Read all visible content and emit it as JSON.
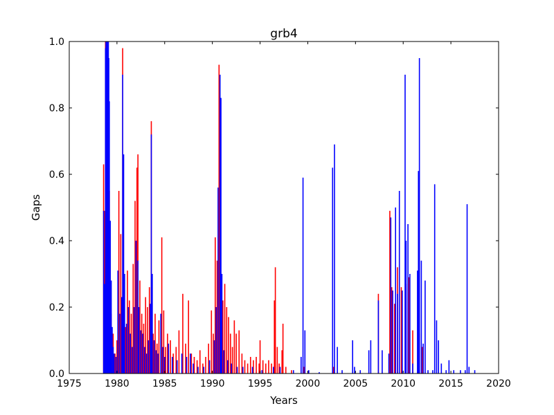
{
  "chart_data": {
    "type": "bar",
    "title": "grb4",
    "xlabel": "Years",
    "ylabel": "Gaps",
    "xlim": [
      1975,
      2020
    ],
    "ylim": [
      0,
      1.0
    ],
    "xticks": [
      1975,
      1980,
      1985,
      1990,
      1995,
      2000,
      2005,
      2010,
      2015,
      2020
    ],
    "xtick_labels": [
      "1975",
      "1980",
      "1985",
      "1990",
      "1995",
      "2000",
      "2005",
      "2010",
      "2015",
      "2020"
    ],
    "yticks": [
      0,
      0.2,
      0.4,
      0.6,
      0.8,
      1.0
    ],
    "ytick_labels": [
      "0.0",
      "0.2",
      "0.4",
      "0.6",
      "0.8",
      "1.0"
    ],
    "grid": false,
    "legend": "none",
    "series": [
      {
        "color": "#ff0000",
        "points": [
          [
            1978.6,
            0.63
          ],
          [
            1978.7,
            0.49
          ],
          [
            1978.8,
            1.0
          ],
          [
            1978.9,
            0.28
          ],
          [
            1979.0,
            0.35
          ],
          [
            1979.2,
            0.55
          ],
          [
            1979.4,
            0.18
          ],
          [
            1979.6,
            0.12
          ],
          [
            1979.8,
            0.06
          ],
          [
            1980.0,
            0.1
          ],
          [
            1980.2,
            0.55
          ],
          [
            1980.4,
            0.42
          ],
          [
            1980.6,
            0.98
          ],
          [
            1980.7,
            0.25
          ],
          [
            1980.9,
            0.14
          ],
          [
            1981.1,
            0.31
          ],
          [
            1981.3,
            0.22
          ],
          [
            1981.5,
            0.18
          ],
          [
            1981.7,
            0.33
          ],
          [
            1981.9,
            0.52
          ],
          [
            1982.1,
            0.62
          ],
          [
            1982.2,
            0.66
          ],
          [
            1982.4,
            0.28
          ],
          [
            1982.6,
            0.18
          ],
          [
            1982.8,
            0.15
          ],
          [
            1983.0,
            0.23
          ],
          [
            1983.2,
            0.2
          ],
          [
            1983.4,
            0.26
          ],
          [
            1983.6,
            0.76
          ],
          [
            1983.8,
            0.12
          ],
          [
            1984.0,
            0.18
          ],
          [
            1984.2,
            0.09
          ],
          [
            1984.4,
            0.16
          ],
          [
            1984.7,
            0.41
          ],
          [
            1984.9,
            0.19
          ],
          [
            1985.1,
            0.08
          ],
          [
            1985.3,
            0.12
          ],
          [
            1985.6,
            0.1
          ],
          [
            1985.9,
            0.06
          ],
          [
            1986.2,
            0.08
          ],
          [
            1986.5,
            0.13
          ],
          [
            1986.9,
            0.24
          ],
          [
            1987.2,
            0.09
          ],
          [
            1987.5,
            0.22
          ],
          [
            1987.8,
            0.06
          ],
          [
            1988.1,
            0.05
          ],
          [
            1988.4,
            0.04
          ],
          [
            1988.7,
            0.07
          ],
          [
            1989.0,
            0.03
          ],
          [
            1989.3,
            0.05
          ],
          [
            1989.6,
            0.09
          ],
          [
            1989.9,
            0.19
          ],
          [
            1990.1,
            0.12
          ],
          [
            1990.3,
            0.41
          ],
          [
            1990.5,
            0.34
          ],
          [
            1990.7,
            0.93
          ],
          [
            1990.9,
            0.16
          ],
          [
            1991.1,
            0.22
          ],
          [
            1991.3,
            0.27
          ],
          [
            1991.5,
            0.2
          ],
          [
            1991.7,
            0.17
          ],
          [
            1991.9,
            0.12
          ],
          [
            1992.1,
            0.08
          ],
          [
            1992.3,
            0.16
          ],
          [
            1992.5,
            0.12
          ],
          [
            1992.8,
            0.13
          ],
          [
            1993.1,
            0.06
          ],
          [
            1993.4,
            0.04
          ],
          [
            1993.7,
            0.03
          ],
          [
            1994.0,
            0.05
          ],
          [
            1994.3,
            0.04
          ],
          [
            1994.6,
            0.05
          ],
          [
            1994.9,
            0.03
          ],
          [
            1995.0,
            0.1
          ],
          [
            1995.3,
            0.04
          ],
          [
            1995.6,
            0.03
          ],
          [
            1995.9,
            0.04
          ],
          [
            1996.2,
            0.03
          ],
          [
            1996.5,
            0.22
          ],
          [
            1996.6,
            0.32
          ],
          [
            1996.8,
            0.08
          ],
          [
            1997.0,
            0.03
          ],
          [
            1997.3,
            0.07
          ],
          [
            1997.4,
            0.15
          ],
          [
            1997.7,
            0.02
          ],
          [
            1998.3,
            0.01
          ],
          [
            1999.6,
            0.02
          ],
          [
            2002.7,
            0.02
          ],
          [
            2007.4,
            0.24
          ],
          [
            2008.6,
            0.49
          ],
          [
            2008.8,
            0.26
          ],
          [
            2009.1,
            0.21
          ],
          [
            2009.4,
            0.32
          ],
          [
            2009.8,
            0.26
          ],
          [
            2010.3,
            0.27
          ],
          [
            2010.6,
            0.29
          ],
          [
            2011.0,
            0.13
          ],
          [
            2011.7,
            0.12
          ],
          [
            2012.0,
            0.08
          ]
        ]
      },
      {
        "color": "#0000ff",
        "points": [
          [
            1978.6,
            0.49
          ],
          [
            1978.7,
            0.27
          ],
          [
            1978.8,
            0.98
          ],
          [
            1978.85,
            1.0
          ],
          [
            1978.9,
            1.0
          ],
          [
            1978.95,
            1.0
          ],
          [
            1979.0,
            1.0
          ],
          [
            1979.05,
            1.0
          ],
          [
            1979.1,
            1.0
          ],
          [
            1979.15,
            0.95
          ],
          [
            1979.2,
            0.82
          ],
          [
            1979.3,
            0.46
          ],
          [
            1979.4,
            0.28
          ],
          [
            1979.5,
            0.14
          ],
          [
            1979.6,
            0.08
          ],
          [
            1979.7,
            0.06
          ],
          [
            1979.9,
            0.05
          ],
          [
            1980.1,
            0.31
          ],
          [
            1980.3,
            0.18
          ],
          [
            1980.5,
            0.23
          ],
          [
            1980.6,
            0.9
          ],
          [
            1980.7,
            0.66
          ],
          [
            1980.8,
            0.3
          ],
          [
            1981.0,
            0.15
          ],
          [
            1981.2,
            0.2
          ],
          [
            1981.4,
            0.12
          ],
          [
            1981.6,
            0.08
          ],
          [
            1981.8,
            0.2
          ],
          [
            1982.0,
            0.4
          ],
          [
            1982.2,
            0.34
          ],
          [
            1982.3,
            0.2
          ],
          [
            1982.5,
            0.13
          ],
          [
            1982.7,
            0.12
          ],
          [
            1982.9,
            0.08
          ],
          [
            1983.1,
            0.06
          ],
          [
            1983.3,
            0.1
          ],
          [
            1983.5,
            0.21
          ],
          [
            1983.6,
            0.72
          ],
          [
            1983.7,
            0.3
          ],
          [
            1983.9,
            0.1
          ],
          [
            1984.1,
            0.07
          ],
          [
            1984.3,
            0.06
          ],
          [
            1984.6,
            0.18
          ],
          [
            1984.8,
            0.08
          ],
          [
            1985.0,
            0.05
          ],
          [
            1985.4,
            0.09
          ],
          [
            1985.8,
            0.05
          ],
          [
            1986.3,
            0.04
          ],
          [
            1986.8,
            0.06
          ],
          [
            1987.3,
            0.05
          ],
          [
            1987.7,
            0.06
          ],
          [
            1988.0,
            0.03
          ],
          [
            1988.5,
            0.02
          ],
          [
            1989.1,
            0.02
          ],
          [
            1989.7,
            0.04
          ],
          [
            1990.2,
            0.1
          ],
          [
            1990.4,
            0.2
          ],
          [
            1990.6,
            0.56
          ],
          [
            1990.8,
            0.9
          ],
          [
            1990.9,
            0.83
          ],
          [
            1991.0,
            0.3
          ],
          [
            1991.2,
            0.07
          ],
          [
            1991.6,
            0.04
          ],
          [
            1992.0,
            0.03
          ],
          [
            1992.6,
            0.02
          ],
          [
            1993.2,
            0.02
          ],
          [
            1994.2,
            0.02
          ],
          [
            1995.2,
            0.01
          ],
          [
            1996.4,
            0.02
          ],
          [
            1997.1,
            0.02
          ],
          [
            1998.5,
            0.01
          ],
          [
            1999.3,
            0.05
          ],
          [
            1999.5,
            0.59
          ],
          [
            1999.7,
            0.13
          ],
          [
            2000.1,
            0.01
          ],
          [
            2001.2,
            0.004
          ],
          [
            2002.6,
            0.62
          ],
          [
            2002.8,
            0.69
          ],
          [
            2003.1,
            0.08
          ],
          [
            2003.6,
            0.01
          ],
          [
            2004.7,
            0.1
          ],
          [
            2004.9,
            0.02
          ],
          [
            2005.5,
            0.01
          ],
          [
            2006.4,
            0.07
          ],
          [
            2006.6,
            0.1
          ],
          [
            2007.4,
            0.22
          ],
          [
            2007.8,
            0.07
          ],
          [
            2008.5,
            0.06
          ],
          [
            2008.7,
            0.47
          ],
          [
            2008.9,
            0.25
          ],
          [
            2009.2,
            0.5
          ],
          [
            2009.4,
            0.24
          ],
          [
            2009.6,
            0.55
          ],
          [
            2009.9,
            0.25
          ],
          [
            2010.2,
            0.9
          ],
          [
            2010.3,
            0.4
          ],
          [
            2010.5,
            0.45
          ],
          [
            2010.7,
            0.3
          ],
          [
            2011.0,
            0.03
          ],
          [
            2011.5,
            0.31
          ],
          [
            2011.6,
            0.61
          ],
          [
            2011.7,
            0.95
          ],
          [
            2011.9,
            0.34
          ],
          [
            2012.1,
            0.09
          ],
          [
            2012.3,
            0.28
          ],
          [
            2012.6,
            0.01
          ],
          [
            2013.1,
            0.01
          ],
          [
            2013.3,
            0.57
          ],
          [
            2013.5,
            0.16
          ],
          [
            2013.7,
            0.1
          ],
          [
            2014.0,
            0.03
          ],
          [
            2014.5,
            0.01
          ],
          [
            2014.8,
            0.04
          ],
          [
            2015.3,
            0.01
          ],
          [
            2016.0,
            0.01
          ],
          [
            2016.5,
            0.01
          ],
          [
            2016.7,
            0.51
          ],
          [
            2016.9,
            0.02
          ],
          [
            2017.5,
            0.01
          ]
        ]
      }
    ]
  }
}
